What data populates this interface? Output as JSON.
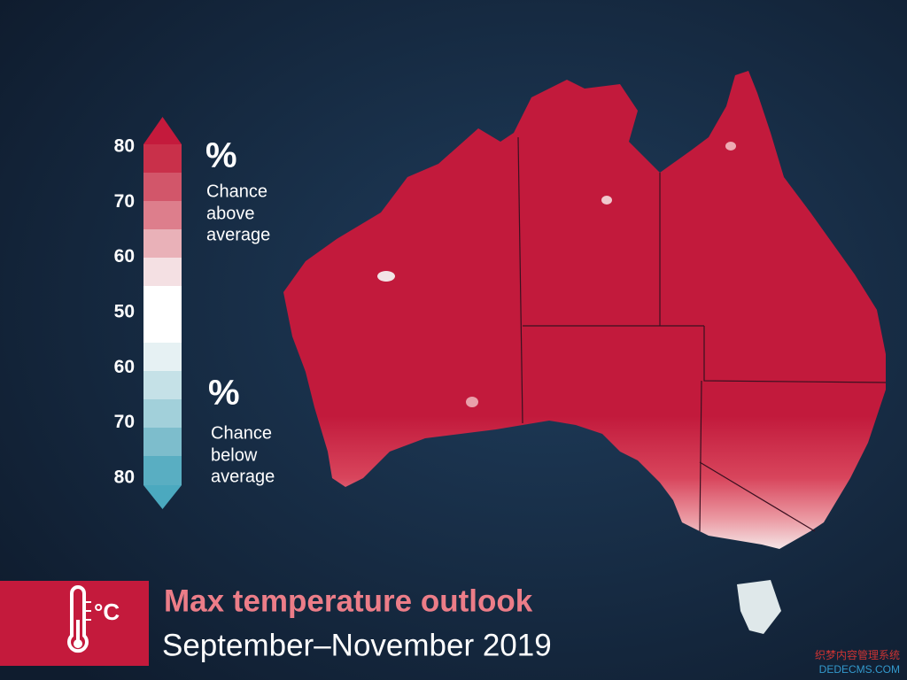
{
  "legend": {
    "ticks": [
      "80",
      "70",
      "60",
      "50",
      "60",
      "70",
      "80"
    ],
    "above": {
      "symbol": "%",
      "lines": [
        "Chance",
        "above",
        "average"
      ]
    },
    "below": {
      "symbol": "%",
      "lines": [
        "Chance",
        "below",
        "average"
      ]
    }
  },
  "banner": {
    "icon_unit": "°C",
    "title": "Max temperature outlook",
    "subtitle": "September–November 2019"
  },
  "watermark": {
    "lines": [
      "织梦内容管理系统",
      "DEDECMS.COM"
    ]
  }
}
